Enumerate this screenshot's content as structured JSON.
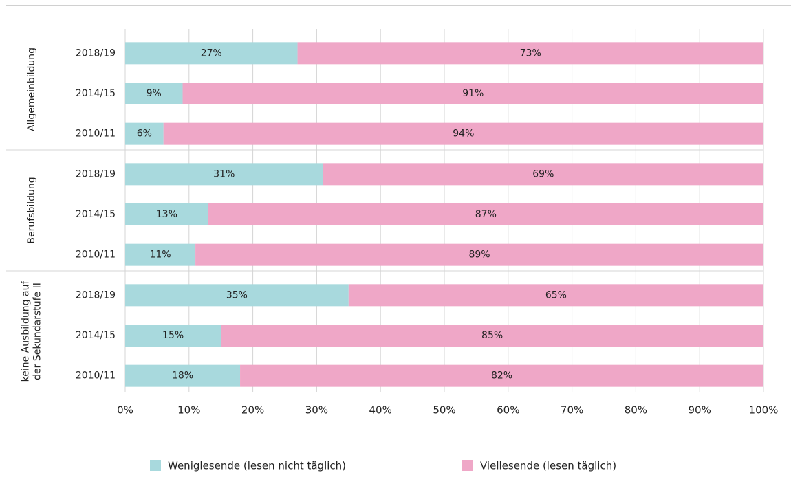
{
  "chart_data": {
    "type": "stacked-bar-horizontal",
    "group_labels": [
      [
        "Allgemeinbildung"
      ],
      [
        "Berufsbildung"
      ],
      [
        "keine Ausbildung auf",
        "der Sekundarstufe II"
      ]
    ],
    "categories": [
      [
        "2018/19",
        "2014/15",
        "2010/11"
      ],
      [
        "2018/19",
        "2014/15",
        "2010/11"
      ],
      [
        "2018/19",
        "2014/15",
        "2010/11"
      ]
    ],
    "series": [
      {
        "name": "Weniglesende (lesen nicht täglich)",
        "color": "#a8d9dd",
        "values": [
          [
            27,
            9,
            6
          ],
          [
            31,
            13,
            11
          ],
          [
            35,
            15,
            18
          ]
        ],
        "value_labels": [
          [
            "27%",
            "9%",
            "6%"
          ],
          [
            "31%",
            "13%",
            "11%"
          ],
          [
            "35%",
            "15%",
            "18%"
          ]
        ]
      },
      {
        "name": "Viellesende (lesen täglich)",
        "color": "#efa7c7",
        "values": [
          [
            73,
            91,
            94
          ],
          [
            69,
            87,
            89
          ],
          [
            65,
            85,
            82
          ]
        ],
        "value_labels": [
          [
            "73%",
            "91%",
            "94%"
          ],
          [
            "69%",
            "87%",
            "89%"
          ],
          [
            "65%",
            "85%",
            "82%"
          ]
        ]
      }
    ],
    "xlim": [
      0,
      100
    ],
    "xticks": [
      {
        "value": 0,
        "label": "0%"
      },
      {
        "value": 10,
        "label": "10%"
      },
      {
        "value": 20,
        "label": "20%"
      },
      {
        "value": 30,
        "label": "30%"
      },
      {
        "value": 40,
        "label": "40%"
      },
      {
        "value": 50,
        "label": "50%"
      },
      {
        "value": 60,
        "label": "60%"
      },
      {
        "value": 70,
        "label": "70%"
      },
      {
        "value": 80,
        "label": "80%"
      },
      {
        "value": 90,
        "label": "90%"
      },
      {
        "value": 100,
        "label": "100%"
      }
    ],
    "grid": true,
    "legend": "bottom"
  }
}
